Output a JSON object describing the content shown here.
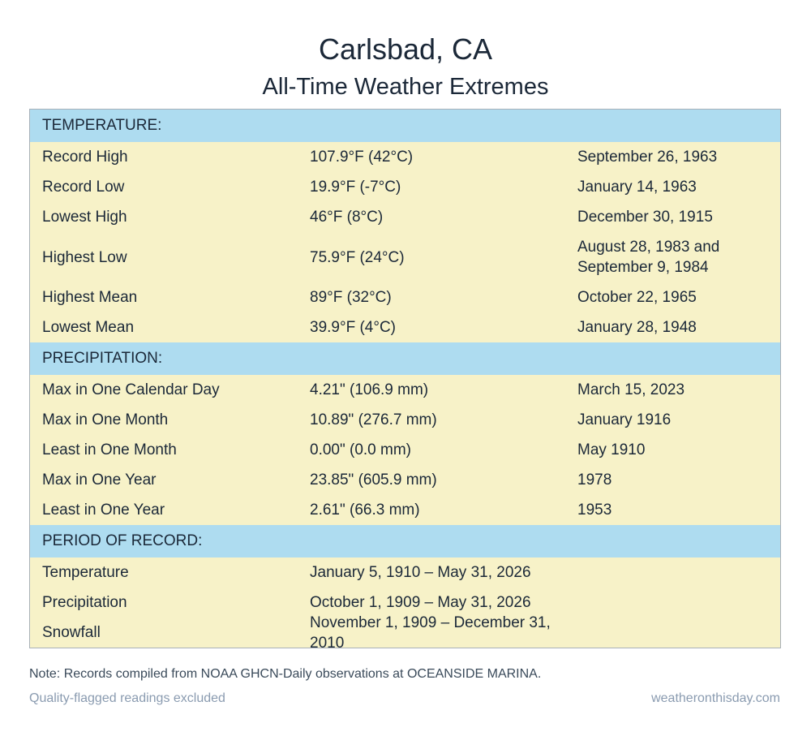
{
  "header": {
    "title": "Carlsbad, CA",
    "subtitle": "All-Time Weather Extremes"
  },
  "sections": [
    {
      "heading": "TEMPERATURE:",
      "rows": [
        [
          "Record High",
          "107.9°F (42°C)",
          "September 26, 1963"
        ],
        [
          "Record Low",
          "19.9°F (-7°C)",
          "January 14, 1963"
        ],
        [
          "Lowest High",
          "46°F (8°C)",
          "December 30, 1915"
        ],
        [
          "Highest Low",
          "75.9°F (24°C)",
          "August 28, 1983 and September 9, 1984"
        ],
        [
          "Highest Mean",
          "89°F (32°C)",
          "October 22, 1965"
        ],
        [
          "Lowest Mean",
          "39.9°F (4°C)",
          "January 28, 1948"
        ]
      ]
    },
    {
      "heading": "PRECIPITATION:",
      "rows": [
        [
          "Max in One Calendar Day",
          "4.21\" (106.9 mm)",
          "March 15, 2023"
        ],
        [
          "Max in One Month",
          "10.89\" (276.7 mm)",
          "January 1916"
        ],
        [
          "Least in One Month",
          "0.00\" (0.0 mm)",
          "May 1910"
        ],
        [
          "Max in One Year",
          "23.85\" (605.9 mm)",
          "1978"
        ],
        [
          "Least in One Year",
          "2.61\" (66.3 mm)",
          "1953"
        ]
      ]
    },
    {
      "heading": "PERIOD OF RECORD:",
      "rows": [
        [
          "Temperature",
          "January 5, 1910 – May 31, 2026"
        ],
        [
          "Precipitation",
          "October 1, 1909 – May 31, 2026"
        ],
        [
          "Snowfall",
          "November 1, 1909 – December 31, 2010"
        ]
      ]
    }
  ],
  "footer": {
    "note": "Note: Records compiled from NOAA GHCN-Daily observations at OCEANSIDE MARINA.",
    "left": "Quality-flagged readings excluded",
    "right": "weatheronthisday.com"
  }
}
